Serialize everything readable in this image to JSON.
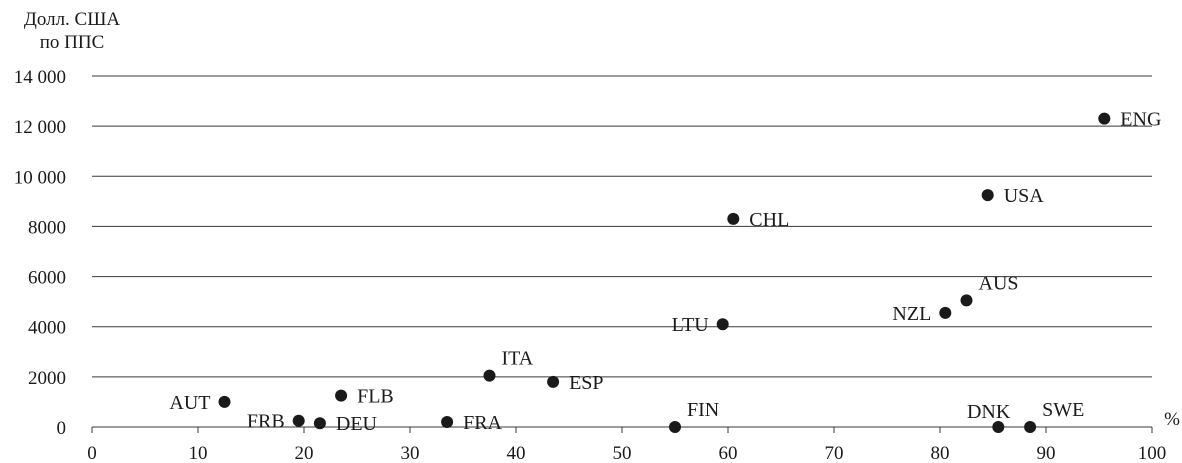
{
  "chart_data": {
    "type": "scatter",
    "ylabel_lines": [
      "Долл. США",
      "по ППС"
    ],
    "xlabel": "%",
    "xlim": [
      0,
      100
    ],
    "ylim": [
      0,
      14000
    ],
    "x_ticks": [
      0,
      10,
      20,
      30,
      40,
      50,
      60,
      70,
      80,
      90,
      100
    ],
    "x_tick_labels": [
      "0",
      "10",
      "20",
      "30",
      "40",
      "50",
      "60",
      "70",
      "80",
      "90",
      "100"
    ],
    "y_ticks": [
      0,
      2000,
      4000,
      6000,
      8000,
      10000,
      12000,
      14000
    ],
    "y_tick_labels": [
      "0",
      "2000",
      "4000",
      "6000",
      "8000",
      "10 000",
      "12 000",
      "14 000"
    ],
    "grid": "horizontal",
    "color": "#1a1a1a",
    "points": [
      {
        "label": "AUT",
        "x": 12.5,
        "y": 1000,
        "label_pos": "left"
      },
      {
        "label": "FRB",
        "x": 19.5,
        "y": 250,
        "label_pos": "left"
      },
      {
        "label": "DEU",
        "x": 21.5,
        "y": 150,
        "label_pos": "right"
      },
      {
        "label": "FLB",
        "x": 23.5,
        "y": 1250,
        "label_pos": "right"
      },
      {
        "label": "FRA",
        "x": 33.5,
        "y": 200,
        "label_pos": "right"
      },
      {
        "label": "ITA",
        "x": 37.5,
        "y": 2050,
        "label_pos": "upper-right"
      },
      {
        "label": "ESP",
        "x": 43.5,
        "y": 1800,
        "label_pos": "right"
      },
      {
        "label": "FIN",
        "x": 55.0,
        "y": 0,
        "label_pos": "upper-right"
      },
      {
        "label": "LTU",
        "x": 59.5,
        "y": 4100,
        "label_pos": "left"
      },
      {
        "label": "CHL",
        "x": 60.5,
        "y": 8300,
        "label_pos": "right"
      },
      {
        "label": "NZL",
        "x": 80.5,
        "y": 4550,
        "label_pos": "left"
      },
      {
        "label": "AUS",
        "x": 82.5,
        "y": 5050,
        "label_pos": "upper-right"
      },
      {
        "label": "USA",
        "x": 84.5,
        "y": 9250,
        "label_pos": "right"
      },
      {
        "label": "DNK",
        "x": 85.5,
        "y": 0,
        "label_pos": "upper-left"
      },
      {
        "label": "SWE",
        "x": 88.5,
        "y": 0,
        "label_pos": "upper-right"
      },
      {
        "label": "ENG",
        "x": 95.5,
        "y": 12300,
        "label_pos": "right"
      }
    ]
  }
}
